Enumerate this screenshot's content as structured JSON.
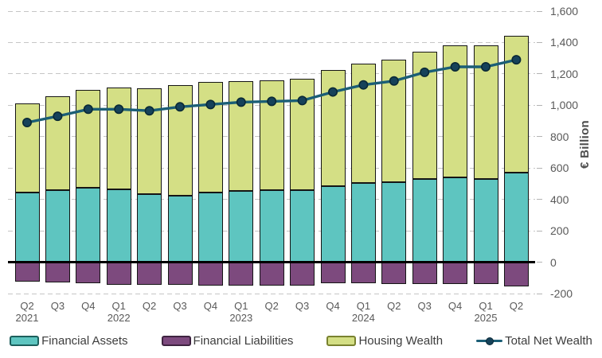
{
  "chart_data": {
    "type": "bar",
    "subtype": "stacked-bar-with-line",
    "description": "Stacked quarterly bars (Financial Assets and Housing Wealth above zero, Financial Liabilities below zero) with a Total Net Wealth line overlay",
    "title": "",
    "xlabel": "",
    "ylabel": "€ Billion",
    "ylim": [
      -200,
      1600
    ],
    "ytick_step": 200,
    "grid": "horizontal dashed",
    "legend_position": "bottom center",
    "categories": [
      {
        "quarter": "Q2",
        "year": "2021"
      },
      {
        "quarter": "Q3",
        "year": ""
      },
      {
        "quarter": "Q4",
        "year": ""
      },
      {
        "quarter": "Q1",
        "year": "2022"
      },
      {
        "quarter": "Q2",
        "year": ""
      },
      {
        "quarter": "Q3",
        "year": ""
      },
      {
        "quarter": "Q4",
        "year": ""
      },
      {
        "quarter": "Q1",
        "year": "2023"
      },
      {
        "quarter": "Q2",
        "year": ""
      },
      {
        "quarter": "Q3",
        "year": ""
      },
      {
        "quarter": "Q4",
        "year": ""
      },
      {
        "quarter": "Q1",
        "year": "2024"
      },
      {
        "quarter": "Q2",
        "year": ""
      },
      {
        "quarter": "Q3",
        "year": ""
      },
      {
        "quarter": "Q4",
        "year": ""
      },
      {
        "quarter": "Q1",
        "year": "2025"
      },
      {
        "quarter": "Q2",
        "year": ""
      }
    ],
    "yticks": [
      {
        "value": 1600,
        "label": "1,600"
      },
      {
        "value": 1400,
        "label": "1,400"
      },
      {
        "value": 1200,
        "label": "1,200"
      },
      {
        "value": 1000,
        "label": "1,000"
      },
      {
        "value": 800,
        "label": "800"
      },
      {
        "value": 600,
        "label": "600"
      },
      {
        "value": 400,
        "label": "400"
      },
      {
        "value": 200,
        "label": "200"
      },
      {
        "value": 0,
        "label": "0"
      },
      {
        "value": -200,
        "label": "-200"
      }
    ],
    "series": [
      {
        "name": "Financial Assets",
        "type": "bar",
        "stack": "positive",
        "color": "#5EC5C0",
        "values": [
          445,
          460,
          475,
          465,
          435,
          425,
          445,
          455,
          460,
          460,
          485,
          505,
          510,
          530,
          540,
          530,
          570
        ]
      },
      {
        "name": "Financial Liabilities",
        "type": "bar",
        "stack": "negative",
        "color": "#7D4A7E",
        "values": [
          -125,
          -130,
          -135,
          -145,
          -145,
          -145,
          -150,
          -150,
          -150,
          -150,
          -135,
          -135,
          -140,
          -140,
          -140,
          -140,
          -155
        ]
      },
      {
        "name": "Housing Wealth",
        "type": "bar",
        "stack": "positive",
        "color": "#D4DF85",
        "values": [
          565,
          600,
          625,
          650,
          675,
          705,
          705,
          700,
          700,
          710,
          740,
          760,
          780,
          810,
          840,
          850,
          875
        ]
      },
      {
        "name": "Total Net Wealth",
        "type": "line",
        "color": "#1B5E76",
        "values": [
          890,
          930,
          975,
          975,
          965,
          990,
          1005,
          1020,
          1025,
          1030,
          1085,
          1130,
          1155,
          1210,
          1245,
          1245,
          1290
        ]
      }
    ],
    "legend": [
      {
        "label": "Financial Assets",
        "swatch": "bar",
        "color": "#5EC5C0",
        "border": "#1C5F5C"
      },
      {
        "label": "Financial Liabilities",
        "swatch": "bar",
        "color": "#7D4A7E",
        "border": "#3E2340"
      },
      {
        "label": "Housing Wealth",
        "swatch": "bar",
        "color": "#D4DF85",
        "border": "#79822F"
      },
      {
        "label": "Total Net Wealth",
        "swatch": "line",
        "color": "#1B5E76",
        "dot_color": "#16425A"
      }
    ],
    "colors": {
      "bar_border": "#151515",
      "zero_line": "#000000",
      "gridline": "#C6C6C6",
      "axis_text": "#595959",
      "legend_text": "#3D3D3D",
      "line": "#1B5E76",
      "dot": "#16425A",
      "dot_border": "#0A2936"
    }
  }
}
